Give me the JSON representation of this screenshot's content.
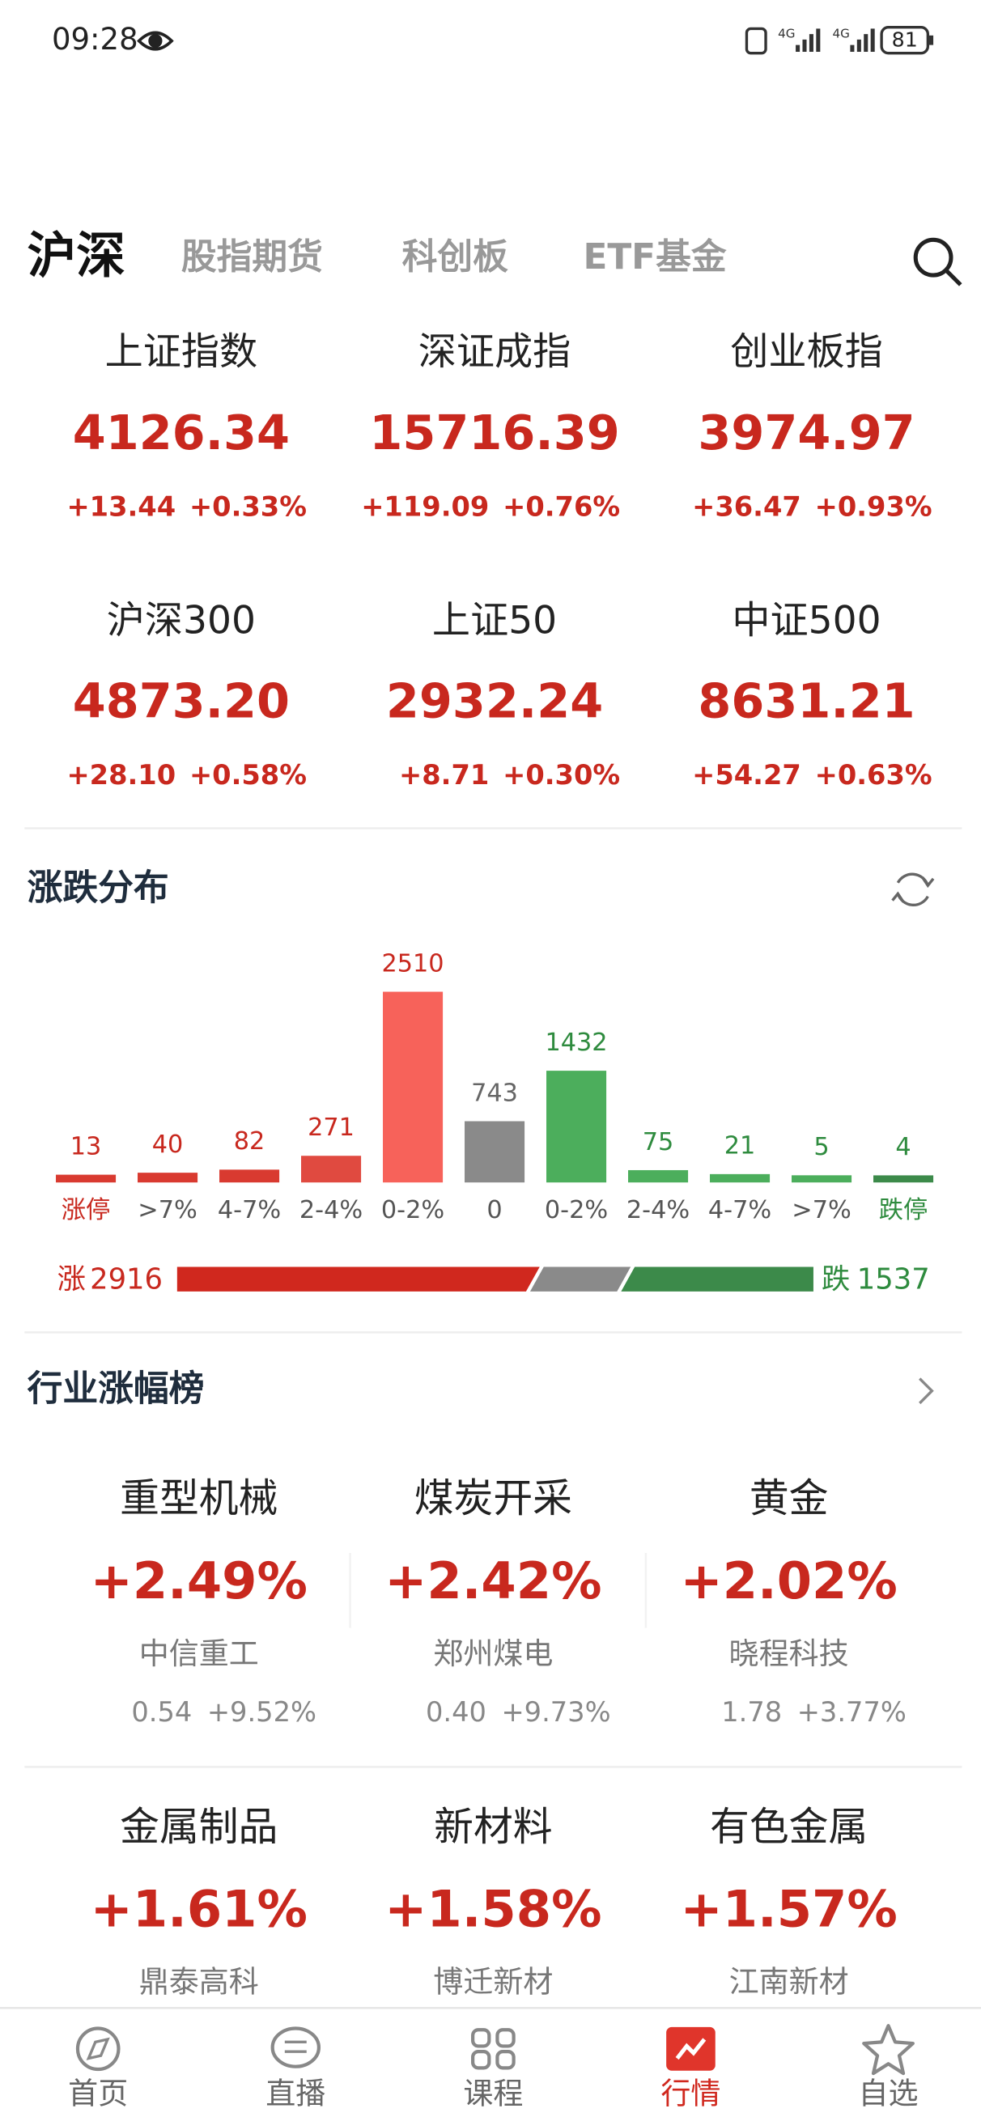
{
  "status_bar": {
    "time": "09:28",
    "network_labels": [
      "4G",
      "4G"
    ],
    "battery": "81"
  },
  "tabs": [
    "沪深",
    "股指期货",
    "科创板",
    "ETF基金"
  ],
  "indices": [
    {
      "name": "上证指数",
      "value": "4126.34",
      "change": "+13.44",
      "percent": "+0.33%"
    },
    {
      "name": "深证成指",
      "value": "15716.39",
      "change": "+119.09",
      "percent": "+0.76%"
    },
    {
      "name": "创业板指",
      "value": "3974.97",
      "change": "+36.47",
      "percent": "+0.93%"
    },
    {
      "name": "沪深300",
      "value": "4873.20",
      "change": "+28.10",
      "percent": "+0.58%"
    },
    {
      "name": "上证50",
      "value": "2932.24",
      "change": "+8.71",
      "percent": "+0.30%"
    },
    {
      "name": "中证500",
      "value": "8631.21",
      "change": "+54.27",
      "percent": "+0.63%"
    }
  ],
  "distribution": {
    "title": "涨跌分布",
    "categories": [
      "涨停",
      ">7%",
      "4-7%",
      "2-4%",
      "0-2%",
      "0",
      "0-2%",
      "2-4%",
      "4-7%",
      ">7%",
      "跌停"
    ],
    "values": [
      13,
      40,
      82,
      271,
      2510,
      743,
      1432,
      75,
      21,
      5,
      4
    ],
    "colors": [
      "#d93a30",
      "#d93a30",
      "#d93a30",
      "#e04a40",
      "#f7625a",
      "#8a8a8a",
      "#4cae5c",
      "#4cae5c",
      "#4cae5c",
      "#4cae5c",
      "#3c8a4a"
    ],
    "label_colors": [
      "#c8281e",
      "#c8281e",
      "#c8281e",
      "#c8281e",
      "#c8281e",
      "#666666",
      "#2e8b3e",
      "#2e8b3e",
      "#2e8b3e",
      "#2e8b3e",
      "#2e8b3e"
    ],
    "category_colors": [
      "#c8281e",
      "#555555",
      "#555555",
      "#555555",
      "#555555",
      "#555555",
      "#555555",
      "#555555",
      "#555555",
      "#555555",
      "#2e8b3e"
    ],
    "up": {
      "label": "涨",
      "value": 2916,
      "color": "#c8281e"
    },
    "down": {
      "label": "跌",
      "value": 1537,
      "color": "#2e8b3e"
    }
  },
  "industries": {
    "title": "行业涨幅榜",
    "items": [
      {
        "name": "重型机械",
        "change": "+2.49%",
        "stock": "中信重工",
        "price": "0.54",
        "stock_change": "+9.52%"
      },
      {
        "name": "煤炭开采",
        "change": "+2.42%",
        "stock": "郑州煤电",
        "price": "0.40",
        "stock_change": "+9.73%"
      },
      {
        "name": "黄金",
        "change": "+2.02%",
        "stock": "晓程科技",
        "price": "1.78",
        "stock_change": "+3.77%"
      },
      {
        "name": "金属制品",
        "change": "+1.61%",
        "stock": "鼎泰高科"
      },
      {
        "name": "新材料",
        "change": "+1.58%",
        "stock": "博迁新材"
      },
      {
        "name": "有色金属",
        "change": "+1.57%",
        "stock": "江南新材"
      }
    ]
  },
  "nav": {
    "items": [
      "首页",
      "直播",
      "课程",
      "行情",
      "自选"
    ],
    "active": 3
  }
}
